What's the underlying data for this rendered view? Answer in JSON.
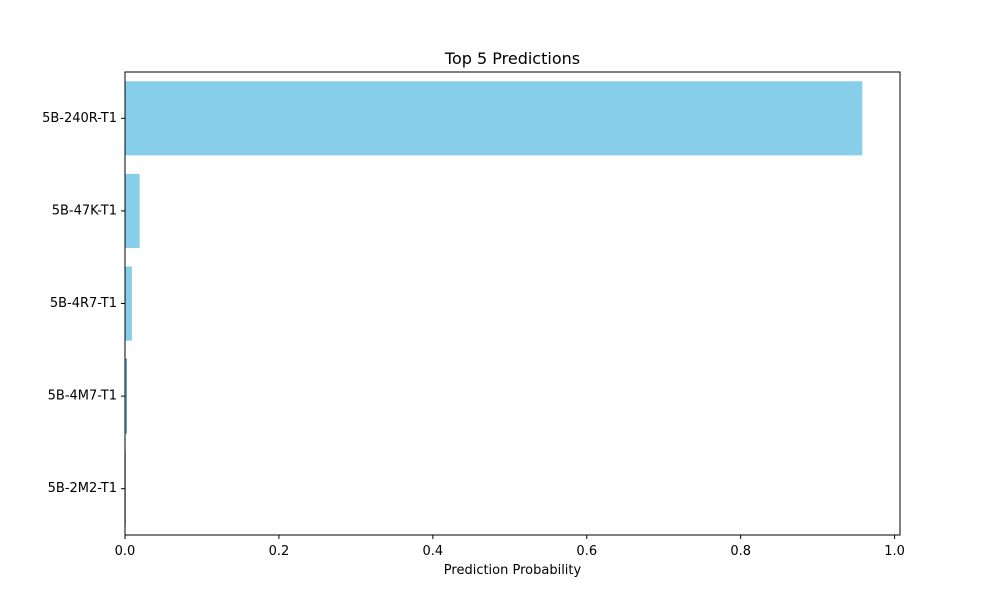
{
  "chart_data": {
    "type": "bar",
    "orientation": "horizontal",
    "title": "Top 5 Predictions",
    "xlabel": "Prediction Probability",
    "ylabel": "",
    "categories": [
      "5B-240R-T1",
      "5B-47K-T1",
      "5B-4R7-T1",
      "5B-4M7-T1",
      "5B-2M2-T1"
    ],
    "values": [
      0.958,
      0.019,
      0.009,
      0.002,
      0.0005
    ],
    "xlim": [
      0.0,
      1.007
    ],
    "xticks": [
      0.0,
      0.2,
      0.4,
      0.6,
      0.8,
      1.0
    ],
    "xtick_labels": [
      "0.0",
      "0.2",
      "0.4",
      "0.6",
      "0.8",
      "1.0"
    ],
    "grid": false,
    "bar_color": "#87ceeb",
    "bar_edge_color": "#1f77b4"
  }
}
